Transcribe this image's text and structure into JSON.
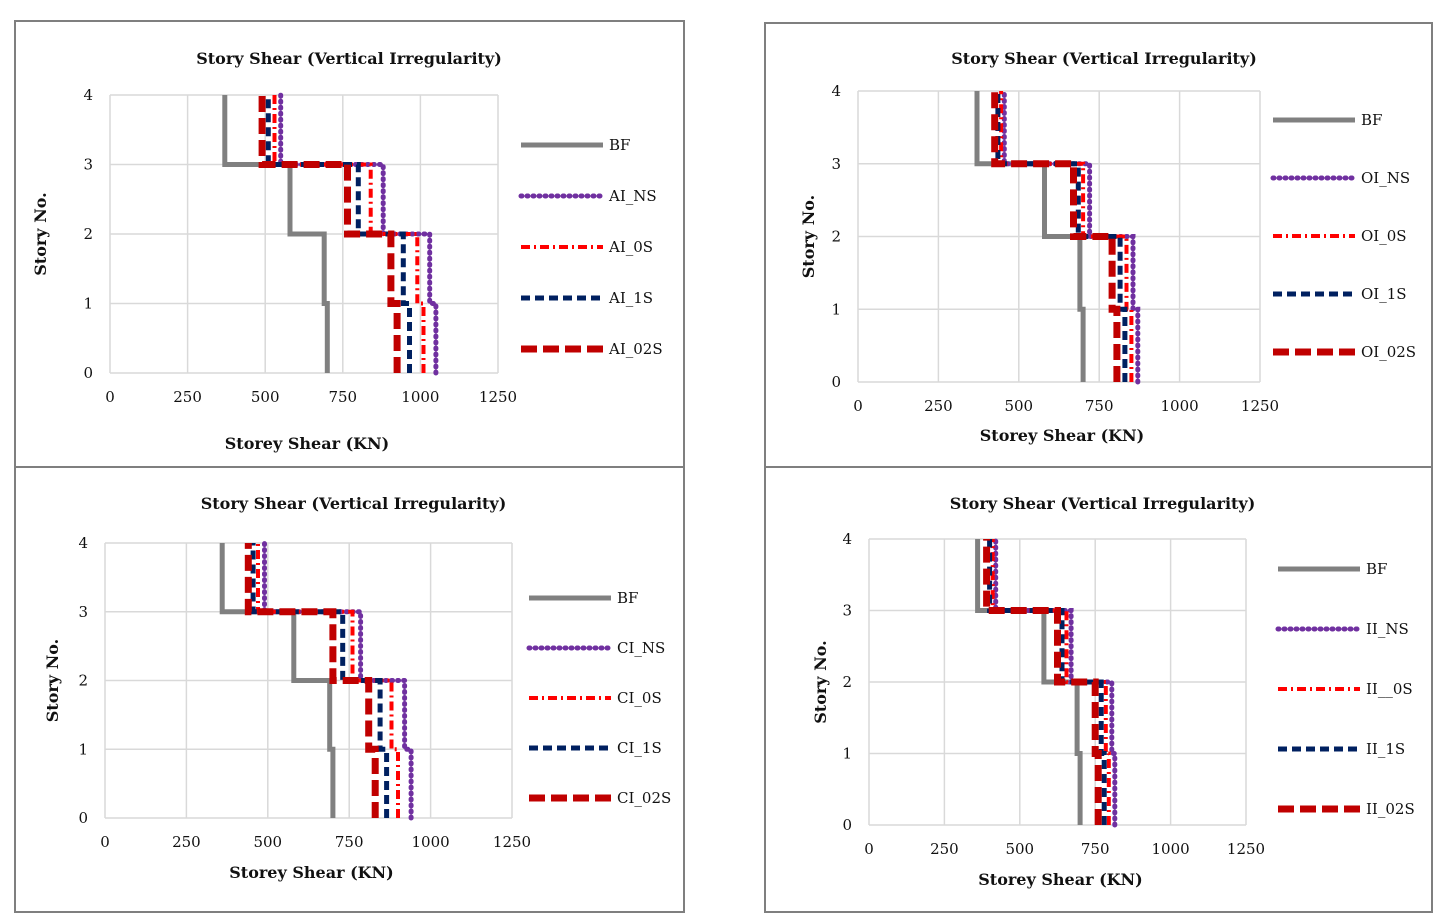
{
  "charts": [
    {
      "type": "line",
      "title": "Story Shear (Vertical Irregularity)",
      "xlabel": "Storey Shear (KN)",
      "ylabel": "Story No.",
      "xlim": [
        0,
        1250
      ],
      "ylim": [
        0,
        4
      ],
      "xticks": [
        "0",
        "250",
        "500",
        "750",
        "1000",
        "1250"
      ],
      "yticks": [
        "0",
        "1",
        "2",
        "3",
        "4"
      ],
      "grid": true,
      "legend_position": "right",
      "series": [
        {
          "name": "BF",
          "style": "solid",
          "color": "#808080",
          "values": [
            700,
            690,
            680,
            580,
            370,
            370
          ]
        },
        {
          "name": "AI_NS",
          "style": "dotted",
          "color": "#7030a0",
          "values": [
            1050,
            1030,
            1000,
            880,
            550,
            550
          ]
        },
        {
          "name": "AI_0S",
          "style": "dashdot",
          "color": "#ff0000",
          "values": [
            1010,
            990,
            960,
            840,
            530,
            530
          ]
        },
        {
          "name": "AI_1S",
          "style": "dashed",
          "color": "#002060",
          "values": [
            965,
            945,
            920,
            800,
            510,
            510
          ]
        },
        {
          "name": "AI_02S",
          "style": "longdash",
          "color": "#c00000",
          "values": [
            925,
            905,
            880,
            765,
            490,
            490
          ]
        }
      ]
    },
    {
      "type": "line",
      "title": "Story Shear (Vertical Irregularity)",
      "xlabel": "Storey Shear (KN)",
      "ylabel": "Story No.",
      "xlim": [
        0,
        1250
      ],
      "ylim": [
        0,
        4
      ],
      "xticks": [
        "0",
        "250",
        "500",
        "750",
        "1000",
        "1250"
      ],
      "yticks": [
        "0",
        "1",
        "2",
        "3",
        "4"
      ],
      "grid": true,
      "legend_position": "right",
      "series": [
        {
          "name": "BF",
          "style": "solid",
          "color": "#808080",
          "values": [
            700,
            690,
            670,
            580,
            370,
            370
          ]
        },
        {
          "name": "OI_NS",
          "style": "dotted",
          "color": "#7030a0",
          "values": [
            870,
            855,
            840,
            720,
            455,
            455
          ]
        },
        {
          "name": "OI_0S",
          "style": "dashdot",
          "color": "#ff0000",
          "values": [
            850,
            835,
            820,
            700,
            445,
            445
          ]
        },
        {
          "name": "OI_1S",
          "style": "dashed",
          "color": "#002060",
          "values": [
            830,
            815,
            800,
            685,
            435,
            435
          ]
        },
        {
          "name": "OI_02S",
          "style": "longdash",
          "color": "#c00000",
          "values": [
            805,
            790,
            775,
            670,
            425,
            425
          ]
        }
      ]
    },
    {
      "type": "line",
      "title": "Story Shear (Vertical Irregularity)",
      "xlabel": "Storey Shear (KN)",
      "ylabel": "Story No.",
      "xlim": [
        0,
        1250
      ],
      "ylim": [
        0,
        4
      ],
      "xticks": [
        "0",
        "250",
        "500",
        "750",
        "1000",
        "1250"
      ],
      "yticks": [
        "0",
        "1",
        "2",
        "3",
        "4"
      ],
      "grid": true,
      "legend_position": "right",
      "series": [
        {
          "name": "BF",
          "style": "solid",
          "color": "#808080",
          "values": [
            700,
            690,
            670,
            580,
            360,
            360
          ]
        },
        {
          "name": "CI_NS",
          "style": "dotted",
          "color": "#7030a0",
          "values": [
            940,
            920,
            890,
            785,
            490,
            490
          ]
        },
        {
          "name": "CI_0S",
          "style": "dashdot",
          "color": "#ff0000",
          "values": [
            900,
            880,
            855,
            760,
            470,
            470
          ]
        },
        {
          "name": "CI_1S",
          "style": "dashed",
          "color": "#002060",
          "values": [
            865,
            845,
            820,
            730,
            455,
            455
          ]
        },
        {
          "name": "CI_02S",
          "style": "longdash",
          "color": "#c00000",
          "values": [
            830,
            810,
            790,
            700,
            440,
            440
          ]
        }
      ]
    },
    {
      "type": "line",
      "title": "Story Shear (Vertical Irregularity)",
      "xlabel": "Storey Shear (KN)",
      "ylabel": "Story No.",
      "xlim": [
        0,
        1250
      ],
      "ylim": [
        0,
        4
      ],
      "xticks": [
        "0",
        "250",
        "500",
        "750",
        "1000",
        "1250"
      ],
      "yticks": [
        "0",
        "1",
        "2",
        "3",
        "4"
      ],
      "grid": true,
      "legend_position": "right",
      "series": [
        {
          "name": "BF",
          "style": "solid",
          "color": "#808080",
          "values": [
            700,
            690,
            670,
            580,
            360,
            360
          ]
        },
        {
          "name": "II_NS",
          "style": "dotted",
          "color": "#7030a0",
          "values": [
            815,
            805,
            795,
            670,
            420,
            420
          ]
        },
        {
          "name": "II__0S",
          "style": "dashdot",
          "color": "#ff0000",
          "values": [
            795,
            785,
            775,
            655,
            410,
            410
          ]
        },
        {
          "name": "II_1S",
          "style": "dashed",
          "color": "#002060",
          "values": [
            780,
            770,
            755,
            640,
            400,
            400
          ]
        },
        {
          "name": "II_02S",
          "style": "longdash",
          "color": "#c00000",
          "values": [
            760,
            750,
            740,
            625,
            390,
            390
          ]
        }
      ]
    }
  ]
}
